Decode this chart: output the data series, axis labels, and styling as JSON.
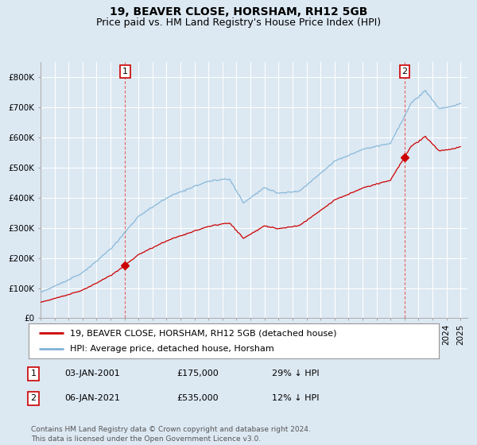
{
  "title": "19, BEAVER CLOSE, HORSHAM, RH12 5GB",
  "subtitle": "Price paid vs. HM Land Registry's House Price Index (HPI)",
  "ylabel_ticks": [
    "£0",
    "£100K",
    "£200K",
    "£300K",
    "£400K",
    "£500K",
    "£600K",
    "£700K",
    "£800K"
  ],
  "ytick_values": [
    0,
    100000,
    200000,
    300000,
    400000,
    500000,
    600000,
    700000,
    800000
  ],
  "ylim": [
    0,
    850000
  ],
  "xlim_start": 1995.0,
  "xlim_end": 2025.5,
  "background_color": "#dce8f2",
  "plot_bg_color": "#dce8f2",
  "grid_color": "#ffffff",
  "hpi_color": "#7fb3d8",
  "price_color": "#cc0000",
  "sale1_year": 2001.04,
  "sale1_price": 175000,
  "sale2_year": 2021.02,
  "sale2_price": 535000,
  "legend_label1": "19, BEAVER CLOSE, HORSHAM, RH12 5GB (detached house)",
  "legend_label2": "HPI: Average price, detached house, Horsham",
  "footer": "Contains HM Land Registry data © Crown copyright and database right 2024.\nThis data is licensed under the Open Government Licence v3.0.",
  "title_fontsize": 10,
  "subtitle_fontsize": 9,
  "tick_fontsize": 7.5,
  "legend_fontsize": 8,
  "ann_fontsize": 8,
  "footer_fontsize": 6.5
}
